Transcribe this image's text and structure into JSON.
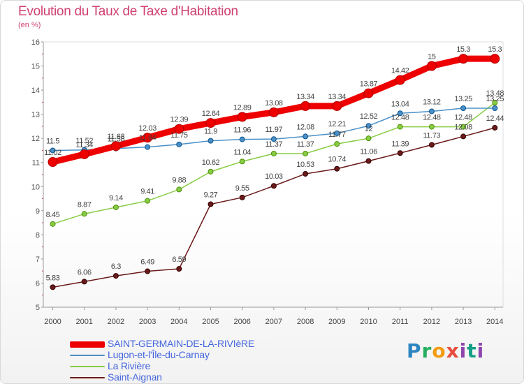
{
  "title": "Evolution du Taux de Taxe d'Habitation",
  "subtitle": "(en %)",
  "logo_text": "Proxiti",
  "chart_data": {
    "type": "line",
    "title": "Evolution du Taux de Taxe d'Habitation",
    "ylabel": "(en %)",
    "xlabel": "",
    "x": [
      "2000",
      "2001",
      "2002",
      "2003",
      "2004",
      "2005",
      "2006",
      "2007",
      "2008",
      "2009",
      "2010",
      "2011",
      "2012",
      "2013",
      "2014"
    ],
    "ylim": [
      5,
      16
    ],
    "yticks": [
      "5",
      "6",
      "7",
      "8",
      "9",
      "10",
      "11",
      "12",
      "13",
      "14",
      "15",
      "16"
    ],
    "grid": false,
    "legend_position": "bottom-left",
    "series": [
      {
        "name": "SAINT-GERMAIN-DE-LA-RIVIèRE",
        "color": "#ee0000",
        "values": [
          11.02,
          11.34,
          11.68,
          12.03,
          12.39,
          12.64,
          12.89,
          13.08,
          13.34,
          13.34,
          13.87,
          14.42,
          15,
          15.3,
          15.3
        ],
        "labels": [
          "11.02",
          "11.34",
          "11.68",
          "12.03",
          "12.39",
          "12.64",
          "12.89",
          "13.08",
          "13.34",
          "13.34",
          "13.87",
          "14.42",
          "15",
          "15.3",
          "15.3"
        ]
      },
      {
        "name": "Lugon-et-l'Île-du-Carnay",
        "color": "#4a90c8",
        "values": [
          11.5,
          11.52,
          11.58,
          11.64,
          11.75,
          11.9,
          11.96,
          11.97,
          12.08,
          12.21,
          12.52,
          13.04,
          13.12,
          13.25,
          13.25
        ],
        "labels": [
          "11.5",
          "11.52",
          "11.58",
          "11.64",
          "11.75",
          "11.9",
          "11.96",
          "11.97",
          "12.08",
          "12.21",
          "12.52",
          "13.04",
          "13.12",
          "13.25",
          "13.25"
        ]
      },
      {
        "name": "La Rivière",
        "color": "#88cc44",
        "values": [
          8.45,
          8.87,
          9.14,
          9.41,
          9.88,
          10.62,
          11.04,
          11.37,
          11.37,
          11.77,
          12,
          12.48,
          12.48,
          12.48,
          13.48
        ],
        "labels": [
          "8.45",
          "8.87",
          "9.14",
          "9.41",
          "9.88",
          "10.62",
          "11.04",
          "11.37",
          "11.37",
          "11.77",
          "12",
          "12.48",
          "12.48",
          "12.48",
          "13.48"
        ]
      },
      {
        "name": "Saint-Aignan",
        "color": "#6b1a1a",
        "values": [
          5.83,
          6.06,
          6.3,
          6.49,
          6.59,
          9.27,
          9.55,
          10.03,
          10.53,
          10.74,
          11.06,
          11.39,
          11.73,
          12.08,
          12.44
        ],
        "labels": [
          "5.83",
          "6.06",
          "6.3",
          "6.49",
          "6.59",
          "9.27",
          "9.55",
          "10.03",
          "10.53",
          "10.74",
          "11.06",
          "11.39",
          "11.73",
          "12.08",
          "12.44"
        ]
      }
    ]
  }
}
